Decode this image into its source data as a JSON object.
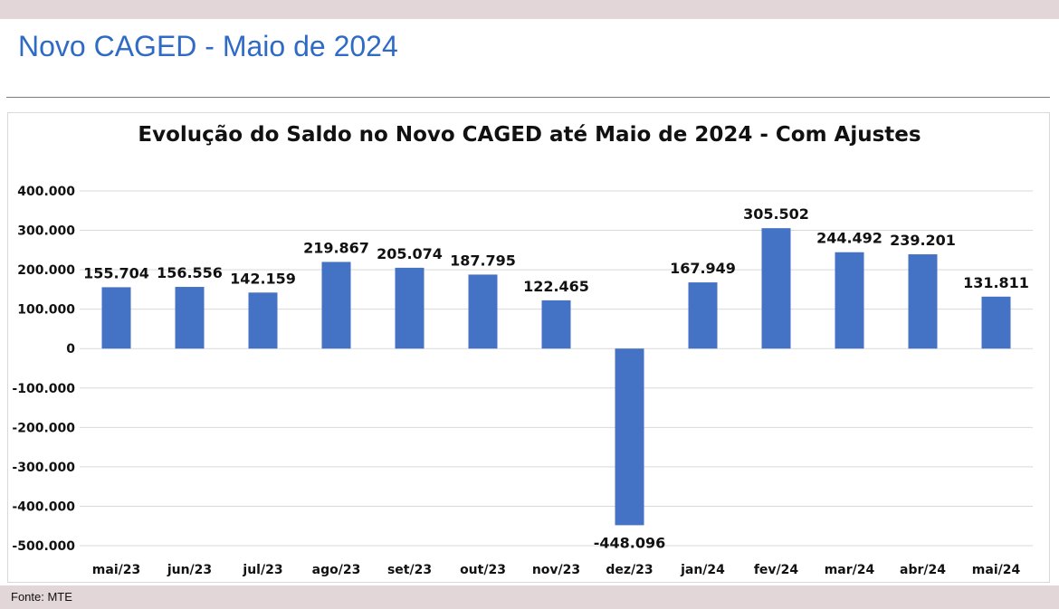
{
  "page": {
    "title": "Novo CAGED - Maio de 2024",
    "source": "Fonte: MTE"
  },
  "colors": {
    "bar": "#4472c4",
    "title": "#2f6bc4",
    "grid": "#d9d9d9",
    "frame": "#e3d6d9"
  },
  "chart_data": {
    "type": "bar",
    "title": "Evolução do Saldo no Novo CAGED até Maio de 2024 - Com Ajustes",
    "xlabel": "",
    "ylabel": "",
    "categories": [
      "mai/23",
      "jun/23",
      "jul/23",
      "ago/23",
      "set/23",
      "out/23",
      "nov/23",
      "dez/23",
      "jan/24",
      "fev/24",
      "mar/24",
      "abr/24",
      "mai/24"
    ],
    "values": [
      155704,
      156556,
      142159,
      219867,
      205074,
      187795,
      122465,
      -448096,
      167949,
      305502,
      244492,
      239201,
      131811
    ],
    "data_labels": [
      "155.704",
      "156.556",
      "142.159",
      "219.867",
      "205.074",
      "187.795",
      "122.465",
      "-448.096",
      "167.949",
      "305.502",
      "244.492",
      "239.201",
      "131.811"
    ],
    "yticks": [
      400000,
      300000,
      200000,
      100000,
      0,
      -100000,
      -200000,
      -300000,
      -400000,
      -500000
    ],
    "ytick_labels": [
      "400.000",
      "300.000",
      "200.000",
      "100.000",
      "0",
      "-100.000",
      "-200.000",
      "-300.000",
      "-400.000",
      "-500.000"
    ],
    "ylim": [
      -500000,
      400000
    ],
    "grid": true,
    "legend": "none"
  }
}
